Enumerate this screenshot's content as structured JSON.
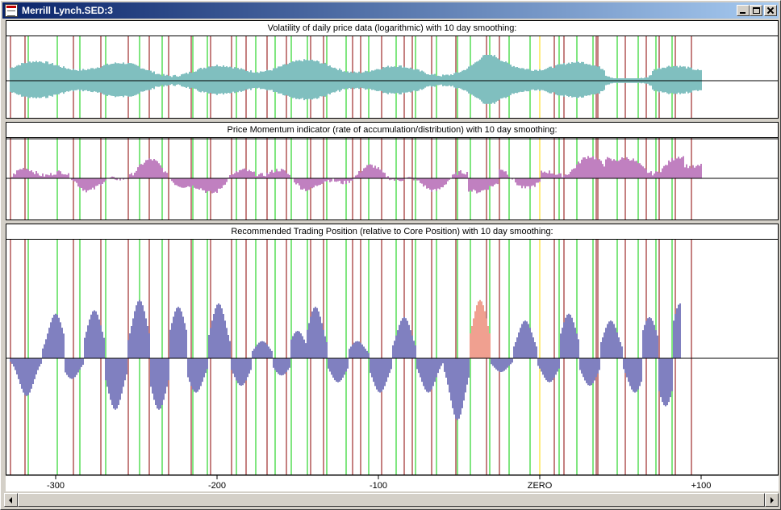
{
  "window": {
    "title": "Merrill Lynch.SED:3"
  },
  "colors": {
    "red_line": "#8b0000",
    "green_line": "#00cc00",
    "yellow_line": "#ffd800",
    "volatility": "#007f7f",
    "momentum": "#800080",
    "position": "#000080",
    "position_highlight": "#e04020"
  },
  "icons": [
    "app-document-icon",
    "minimize-icon",
    "maximize-icon",
    "close-icon",
    "arrow-left-icon",
    "arrow-right-icon"
  ],
  "panels": [
    {
      "title": "Volatility of daily price data (logarithmic) with 10 day smoothing:"
    },
    {
      "title": "Price Momentum indicator (rate of accumulation/distribution) with 10 day smoothing:"
    },
    {
      "title": "Recommended Trading Position (relative to Core Position) with 10 day smoothing:"
    }
  ],
  "chart_data": {
    "type": "bar",
    "x_range": [
      -328,
      100
    ],
    "x_ticks": [
      {
        "value": -300,
        "label": "-300"
      },
      {
        "value": -200,
        "label": "-200"
      },
      {
        "value": -100,
        "label": "-100"
      },
      {
        "value": 0,
        "label": "ZERO"
      },
      {
        "value": 100,
        "label": "+100"
      }
    ],
    "red_markers": [
      -328,
      -319,
      -289,
      -272,
      -255,
      -242,
      -230,
      -216,
      -204,
      -191,
      -182,
      -169,
      -157,
      -142,
      -134,
      -116,
      -111,
      -98,
      -84,
      -79,
      -67,
      -52,
      -33,
      -25,
      9,
      15,
      35,
      36,
      53,
      66,
      74,
      84,
      94
    ],
    "green_markers": [
      -317,
      -299,
      -285,
      -269,
      -248,
      -234,
      -215,
      -206,
      -188,
      -176,
      -164,
      -154,
      -144,
      -132,
      -120,
      -106,
      -89,
      -77,
      -64,
      -51,
      -43,
      -31,
      -19,
      -6,
      12,
      23,
      33,
      48,
      61,
      72,
      82
    ],
    "yellow_markers": [
      0
    ],
    "series": [
      {
        "name": "Volatility",
        "data_start": -328,
        "data_end": 100
      },
      {
        "name": "Price Momentum",
        "data_start": -328,
        "data_end": 100
      },
      {
        "name": "Recommended Trading Position",
        "data_start": -328,
        "data_end": 87,
        "peaks": [
          {
            "x": -318,
            "value": -0.55
          },
          {
            "x": -300,
            "value": 0.65
          },
          {
            "x": -290,
            "value": -0.3
          },
          {
            "x": -276,
            "value": 0.7
          },
          {
            "x": -263,
            "value": -0.75
          },
          {
            "x": -248,
            "value": 0.85
          },
          {
            "x": -236,
            "value": -0.75
          },
          {
            "x": -224,
            "value": 0.75
          },
          {
            "x": -213,
            "value": -0.5
          },
          {
            "x": -199,
            "value": 0.8
          },
          {
            "x": -185,
            "value": -0.4
          },
          {
            "x": -172,
            "value": 0.25
          },
          {
            "x": -160,
            "value": -0.25
          },
          {
            "x": -150,
            "value": 0.4
          },
          {
            "x": -139,
            "value": 0.75
          },
          {
            "x": -125,
            "value": -0.35
          },
          {
            "x": -113,
            "value": 0.25
          },
          {
            "x": -99,
            "value": -0.5
          },
          {
            "x": -84,
            "value": 0.6
          },
          {
            "x": -69,
            "value": -0.5
          },
          {
            "x": -51,
            "value": -0.9
          },
          {
            "x": -37,
            "value": 0.85,
            "highlight": true
          },
          {
            "x": -24,
            "value": -0.2
          },
          {
            "x": -9,
            "value": 0.55
          },
          {
            "x": 6,
            "value": -0.35
          },
          {
            "x": 18,
            "value": 0.65
          },
          {
            "x": 31,
            "value": -0.4
          },
          {
            "x": 44,
            "value": 0.55
          },
          {
            "x": 59,
            "value": -0.5
          },
          {
            "x": 68,
            "value": 0.6
          },
          {
            "x": 78,
            "value": -0.7
          },
          {
            "x": 87,
            "value": 0.8
          }
        ]
      }
    ]
  }
}
